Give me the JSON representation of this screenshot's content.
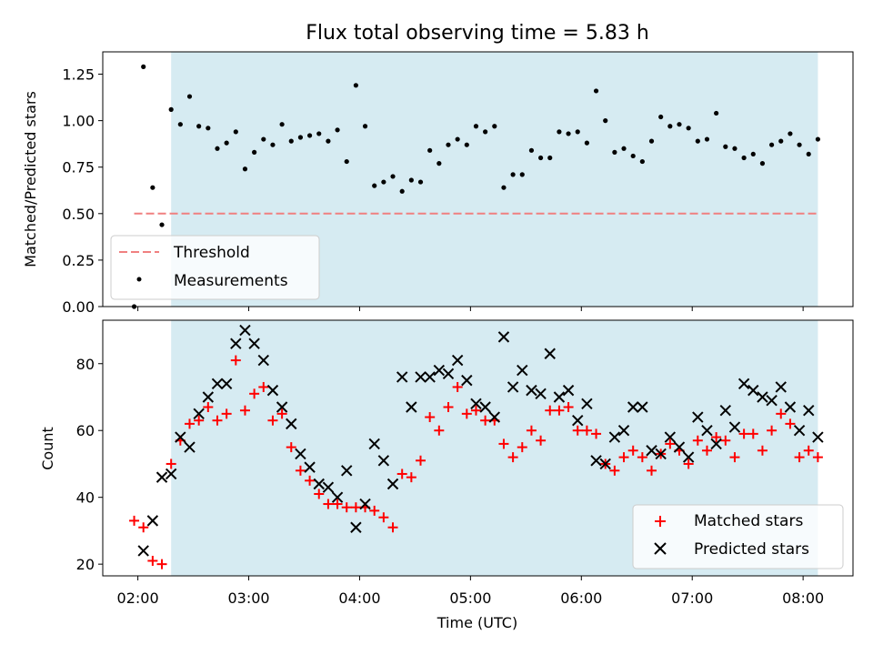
{
  "title": "Flux total observing time = 5.83 h",
  "colors": {
    "shade": "#add8e6",
    "threshold": "#f08080",
    "measurement": "#000000",
    "matched": "#ff0000",
    "predicted": "#000000"
  },
  "chart_data": [
    {
      "type": "scatter",
      "ylabel": "Matched/Predicted stars",
      "ylim": [
        0,
        1.37
      ],
      "yticks": [
        0.0,
        0.25,
        0.5,
        0.75,
        1.0,
        1.25
      ],
      "ytick_labels": [
        "0.00",
        "0.25",
        "0.50",
        "0.75",
        "1.00",
        "1.25"
      ],
      "xlim": [
        "01:41",
        "08:27"
      ],
      "shaded_region": [
        "02:18",
        "08:08"
      ],
      "threshold": {
        "name": "Threshold",
        "value": 0.5,
        "x_range": [
          "01:58",
          "08:08"
        ]
      },
      "legend": {
        "placement": "lower-left",
        "entries": [
          "Threshold",
          "Measurements"
        ]
      },
      "series": [
        {
          "name": "Measurements",
          "x": [
            "01:58",
            "02:03",
            "02:08",
            "02:13",
            "02:18",
            "02:23",
            "02:28",
            "02:33",
            "02:38",
            "02:43",
            "02:48",
            "02:53",
            "02:58",
            "03:03",
            "03:08",
            "03:13",
            "03:18",
            "03:23",
            "03:28",
            "03:33",
            "03:38",
            "03:43",
            "03:48",
            "03:53",
            "03:58",
            "04:03",
            "04:08",
            "04:13",
            "04:18",
            "04:23",
            "04:28",
            "04:33",
            "04:38",
            "04:43",
            "04:48",
            "04:53",
            "04:58",
            "05:03",
            "05:08",
            "05:13",
            "05:18",
            "05:23",
            "05:28",
            "05:33",
            "05:38",
            "05:43",
            "05:48",
            "05:53",
            "05:58",
            "06:03",
            "06:08",
            "06:13",
            "06:18",
            "06:23",
            "06:28",
            "06:33",
            "06:38",
            "06:43",
            "06:48",
            "06:53",
            "06:58",
            "07:03",
            "07:08",
            "07:13",
            "07:18",
            "07:23",
            "07:28",
            "07:33",
            "07:38",
            "07:43",
            "07:48",
            "07:53",
            "07:58",
            "08:03",
            "08:08"
          ],
          "y": [
            0.0,
            1.29,
            0.64,
            0.44,
            1.06,
            0.98,
            1.13,
            0.97,
            0.96,
            0.85,
            0.88,
            0.94,
            0.74,
            0.83,
            0.9,
            0.87,
            0.98,
            0.89,
            0.91,
            0.92,
            0.93,
            0.89,
            0.95,
            0.78,
            1.19,
            0.97,
            0.65,
            0.67,
            0.7,
            0.62,
            0.68,
            0.67,
            0.84,
            0.77,
            0.87,
            0.9,
            0.87,
            0.97,
            0.94,
            0.97,
            0.64,
            0.71,
            0.71,
            0.84,
            0.8,
            0.8,
            0.94,
            0.93,
            0.94,
            0.88,
            1.16,
            1.0,
            0.83,
            0.85,
            0.81,
            0.78,
            0.89,
            1.02,
            0.97,
            0.98,
            0.96,
            0.89,
            0.9,
            1.04,
            0.86,
            0.85,
            0.8,
            0.82,
            0.77,
            0.87,
            0.89,
            0.93,
            0.87,
            0.82,
            0.9
          ]
        }
      ]
    },
    {
      "type": "scatter",
      "xlabel": "Time (UTC)",
      "ylabel": "Count",
      "ylim": [
        16.5,
        93
      ],
      "yticks": [
        20,
        40,
        60,
        80
      ],
      "ytick_labels": [
        "20",
        "40",
        "60",
        "80"
      ],
      "xlim": [
        "01:41",
        "08:27"
      ],
      "xticks": [
        "02:00",
        "03:00",
        "04:00",
        "05:00",
        "06:00",
        "07:00",
        "08:00"
      ],
      "xtick_labels": [
        "02:00",
        "03:00",
        "04:00",
        "05:00",
        "06:00",
        "07:00",
        "08:00"
      ],
      "shaded_region": [
        "02:18",
        "08:08"
      ],
      "legend": {
        "placement": "lower-right",
        "entries": [
          "Matched stars",
          "Predicted stars"
        ]
      },
      "series": [
        {
          "name": "Matched stars",
          "marker": "plus",
          "x": [
            "01:58",
            "02:03",
            "02:08",
            "02:13",
            "02:18",
            "02:23",
            "02:28",
            "02:33",
            "02:38",
            "02:43",
            "02:48",
            "02:53",
            "02:58",
            "03:03",
            "03:08",
            "03:13",
            "03:18",
            "03:23",
            "03:28",
            "03:33",
            "03:38",
            "03:43",
            "03:48",
            "03:53",
            "03:58",
            "04:03",
            "04:08",
            "04:13",
            "04:18",
            "04:23",
            "04:28",
            "04:33",
            "04:38",
            "04:43",
            "04:48",
            "04:53",
            "04:58",
            "05:03",
            "05:08",
            "05:13",
            "05:18",
            "05:23",
            "05:28",
            "05:33",
            "05:38",
            "05:43",
            "05:48",
            "05:53",
            "05:58",
            "06:03",
            "06:08",
            "06:13",
            "06:18",
            "06:23",
            "06:28",
            "06:33",
            "06:38",
            "06:43",
            "06:48",
            "06:53",
            "06:58",
            "07:03",
            "07:08",
            "07:13",
            "07:18",
            "07:23",
            "07:28",
            "07:33",
            "07:38",
            "07:43",
            "07:48",
            "07:53",
            "07:58",
            "08:03",
            "08:08"
          ],
          "y": [
            33,
            31,
            21,
            20,
            50,
            57,
            62,
            63,
            67,
            63,
            65,
            81,
            66,
            71,
            73,
            63,
            65,
            55,
            48,
            45,
            41,
            38,
            38,
            37,
            37,
            37,
            36,
            34,
            31,
            47,
            46,
            51,
            64,
            60,
            67,
            73,
            65,
            66,
            63,
            63,
            56,
            52,
            55,
            60,
            57,
            66,
            66,
            67,
            60,
            60,
            59,
            50,
            48,
            52,
            54,
            52,
            48,
            53,
            56,
            54,
            50,
            57,
            54,
            58,
            57,
            52,
            59,
            59,
            54,
            60,
            65,
            62,
            52,
            54,
            52
          ]
        },
        {
          "name": "Predicted stars",
          "marker": "x",
          "x": [
            "01:58",
            "02:03",
            "02:08",
            "02:13",
            "02:18",
            "02:23",
            "02:28",
            "02:33",
            "02:38",
            "02:43",
            "02:48",
            "02:53",
            "02:58",
            "03:03",
            "03:08",
            "03:13",
            "03:18",
            "03:23",
            "03:28",
            "03:33",
            "03:38",
            "03:43",
            "03:48",
            "03:53",
            "03:58",
            "04:03",
            "04:08",
            "04:13",
            "04:18",
            "04:23",
            "04:28",
            "04:33",
            "04:38",
            "04:43",
            "04:48",
            "04:53",
            "04:58",
            "05:03",
            "05:08",
            "05:13",
            "05:18",
            "05:23",
            "05:28",
            "05:33",
            "05:38",
            "05:43",
            "05:48",
            "05:53",
            "05:58",
            "06:03",
            "06:08",
            "06:13",
            "06:18",
            "06:23",
            "06:28",
            "06:33",
            "06:38",
            "06:43",
            "06:48",
            "06:53",
            "06:58",
            "07:03",
            "07:08",
            "07:13",
            "07:18",
            "07:23",
            "07:28",
            "07:33",
            "07:38",
            "07:43",
            "07:48",
            "07:53",
            "07:58",
            "08:03",
            "08:08"
          ],
          "y": [
            null,
            24,
            33,
            46,
            47,
            58,
            55,
            65,
            70,
            74,
            74,
            86,
            90,
            86,
            81,
            72,
            67,
            62,
            53,
            49,
            44,
            43,
            40,
            48,
            31,
            38,
            56,
            51,
            44,
            76,
            67,
            76,
            76,
            78,
            77,
            81,
            75,
            68,
            67,
            64,
            88,
            73,
            78,
            72,
            71,
            83,
            70,
            72,
            63,
            68,
            51,
            50,
            58,
            60,
            67,
            67,
            54,
            53,
            58,
            55,
            52,
            64,
            60,
            56,
            66,
            61,
            74,
            72,
            70,
            69,
            73,
            67,
            60,
            66,
            58
          ]
        }
      ]
    }
  ]
}
